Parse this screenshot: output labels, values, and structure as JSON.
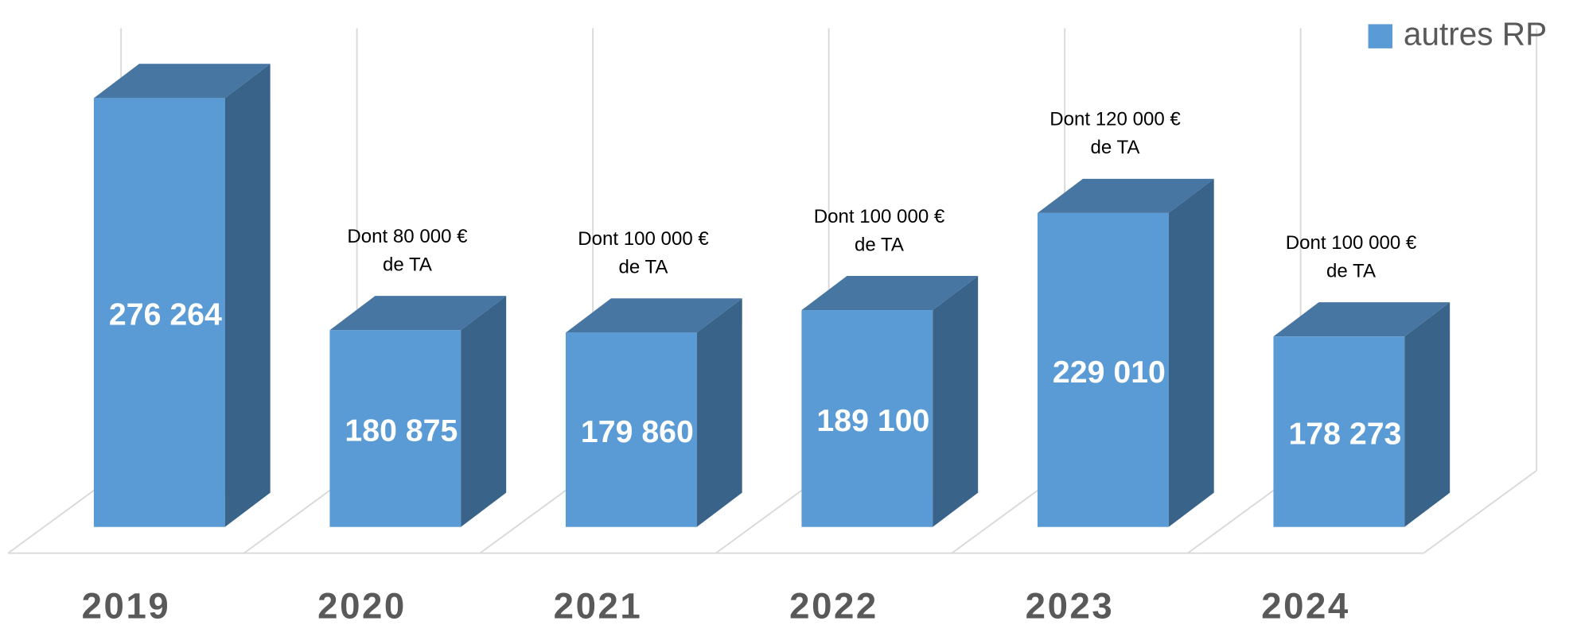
{
  "chart_data": {
    "type": "bar3d",
    "categories": [
      "2019",
      "2020",
      "2021",
      "2022",
      "2023",
      "2024"
    ],
    "series": [
      {
        "name": "autres RP",
        "color": "#5b9bd5",
        "values": [
          276264,
          180875,
          179860,
          189100,
          229010,
          178273
        ],
        "value_labels": [
          "276 264",
          "180 875",
          "179 860",
          "189 100",
          "229 010",
          "178 273"
        ]
      }
    ],
    "annotations": [
      null,
      [
        "Dont 80 000 €",
        "de TA"
      ],
      [
        "Dont 100 000 €",
        "de TA"
      ],
      [
        "Dont 100 000 €",
        "de TA"
      ],
      [
        "Dont 120 000 €",
        "de TA"
      ],
      [
        "Dont 100  000 €",
        "de TA"
      ]
    ],
    "ylim": [
      100000,
      300000
    ],
    "legend": "top-right"
  }
}
